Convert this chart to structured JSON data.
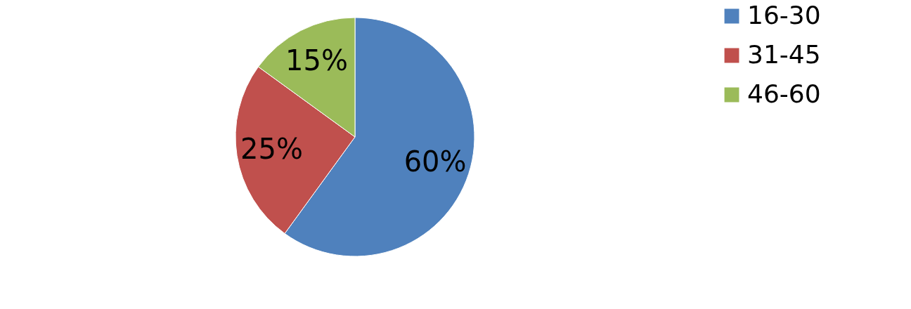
{
  "chart_data": {
    "type": "pie",
    "categories": [
      "16-30",
      "31-45",
      "46-60"
    ],
    "values": [
      60,
      25,
      15
    ],
    "colors": [
      "#4f81bd",
      "#c0504d",
      "#9bbb59"
    ],
    "value_labels": [
      "60%",
      "25%",
      "15%"
    ],
    "legend": "right"
  }
}
